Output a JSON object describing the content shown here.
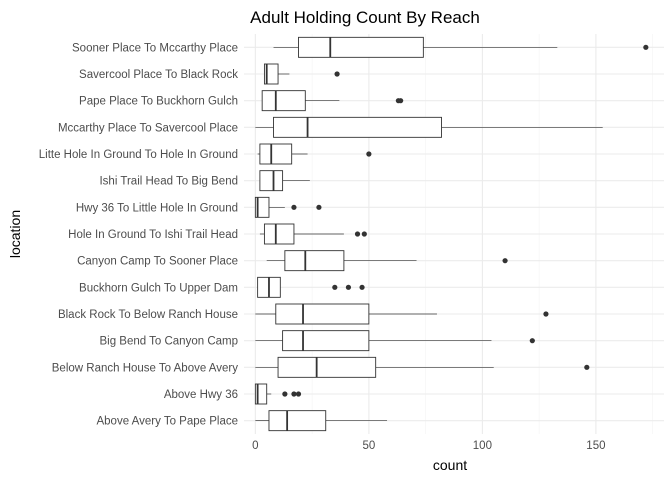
{
  "chart_data": {
    "type": "boxplot",
    "orientation": "horizontal",
    "title": "Adult Holding Count By Reach",
    "xlabel": "count",
    "ylabel": "location",
    "xlim": [
      -5,
      180
    ],
    "xticks": [
      0,
      50,
      100,
      150
    ],
    "grid": true,
    "colors": {
      "box_line": "#333333",
      "box_fill": "#ffffff",
      "grid_major": "#ebebeb",
      "grid_minor": "#f4f4f4",
      "outlier": "#333333"
    },
    "categories": [
      "Sooner Place To Mccarthy Place",
      "Savercool Place  To Black Rock",
      "Pape Place To Buckhorn Gulch",
      "Mccarthy Place To Savercool Place",
      "Litte Hole In Ground To Hole In Ground",
      "Ishi Trail Head To Big Bend",
      "Hwy 36 To Little Hole In Ground",
      "Hole In Ground To Ishi Trail Head",
      "Canyon Camp To Sooner Place",
      "Buckhorn Gulch To Upper Dam",
      "Black Rock To Below Ranch House",
      "Big Bend To Canyon Camp",
      "Below Ranch House To Above Avery",
      "Above Hwy 36",
      "Above Avery To Pape Place"
    ],
    "boxes": [
      {
        "min": 8,
        "q1": 19,
        "median": 33,
        "q3": 74,
        "max": 133,
        "outliers": [
          172
        ]
      },
      {
        "min": 4,
        "q1": 4,
        "median": 5,
        "q3": 10,
        "max": 15,
        "outliers": [
          36
        ]
      },
      {
        "min": 3,
        "q1": 3,
        "median": 9,
        "q3": 22,
        "max": 37,
        "outliers": [
          63,
          64
        ]
      },
      {
        "min": 0,
        "q1": 8,
        "median": 23,
        "q3": 82,
        "max": 153,
        "outliers": []
      },
      {
        "min": 1,
        "q1": 2,
        "median": 7,
        "q3": 16,
        "max": 23,
        "outliers": [
          50
        ]
      },
      {
        "min": 2,
        "q1": 2,
        "median": 8,
        "q3": 12,
        "max": 24,
        "outliers": []
      },
      {
        "min": 0,
        "q1": 0,
        "median": 1,
        "q3": 6,
        "max": 13,
        "outliers": [
          17,
          28
        ]
      },
      {
        "min": 2,
        "q1": 4,
        "median": 9,
        "q3": 17,
        "max": 39,
        "outliers": [
          45,
          48
        ]
      },
      {
        "min": 5,
        "q1": 13,
        "median": 22,
        "q3": 39,
        "max": 71,
        "outliers": [
          110
        ]
      },
      {
        "min": 1,
        "q1": 1,
        "median": 6,
        "q3": 11,
        "max": 11,
        "outliers": [
          35,
          41,
          47
        ]
      },
      {
        "min": 0,
        "q1": 9,
        "median": 21,
        "q3": 50,
        "max": 80,
        "outliers": [
          128
        ]
      },
      {
        "min": 0,
        "q1": 12,
        "median": 21,
        "q3": 50,
        "max": 104,
        "outliers": [
          122
        ]
      },
      {
        "min": 0,
        "q1": 10,
        "median": 27,
        "q3": 53,
        "max": 105,
        "outliers": [
          146
        ]
      },
      {
        "min": 0,
        "q1": 0,
        "median": 1,
        "q3": 5,
        "max": 7,
        "outliers": [
          13,
          17,
          19
        ]
      },
      {
        "min": 0,
        "q1": 6,
        "median": 14,
        "q3": 31,
        "max": 58,
        "outliers": []
      }
    ]
  }
}
